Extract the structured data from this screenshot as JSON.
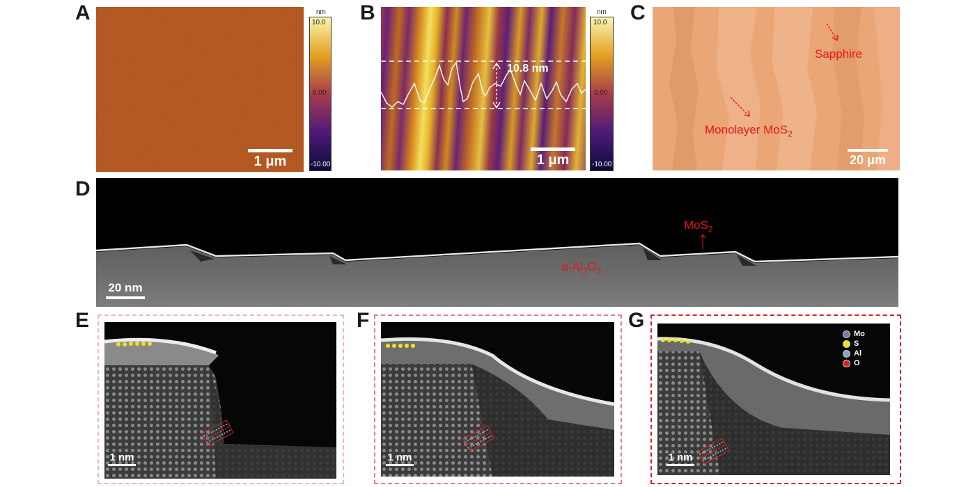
{
  "panels": {
    "a": {
      "letter": "A",
      "scale": "1 μm",
      "colorbar": {
        "unit": "nm",
        "max": "10.0",
        "mid": "0.00",
        "min": "-10.00"
      }
    },
    "b": {
      "letter": "B",
      "scale": "1 μm",
      "height_label": "10.8 nm",
      "colorbar": {
        "unit": "nm",
        "max": "10.0",
        "mid": "0.00",
        "min": "-10.00"
      }
    },
    "c": {
      "letter": "C",
      "scale": "20 μm",
      "label_sapphire": "Sapphire",
      "label_mos2_prefix": "Monolayer MoS",
      "label_mos2_sub": "2"
    },
    "d": {
      "letter": "D",
      "scale": "20 nm",
      "mos2_prefix": "MoS",
      "mos2_sub": "2",
      "substrate": [
        "α-Al",
        "2",
        "O",
        "3"
      ]
    },
    "e": {
      "letter": "E",
      "scale": "1 nm"
    },
    "f": {
      "letter": "F",
      "scale": "1 nm"
    },
    "g": {
      "letter": "G",
      "scale": "1 nm",
      "legend": [
        "Mo",
        "S",
        "Al",
        "O"
      ]
    }
  },
  "colors": {
    "legend_mo": "#8a6fa8",
    "legend_s": "#f2e21a",
    "legend_al": "#7fa8b8",
    "legend_o": "#e02020",
    "frame_e": "#f0b4bd",
    "frame_f": "#e87a8e",
    "frame_g": "#d9212b"
  }
}
